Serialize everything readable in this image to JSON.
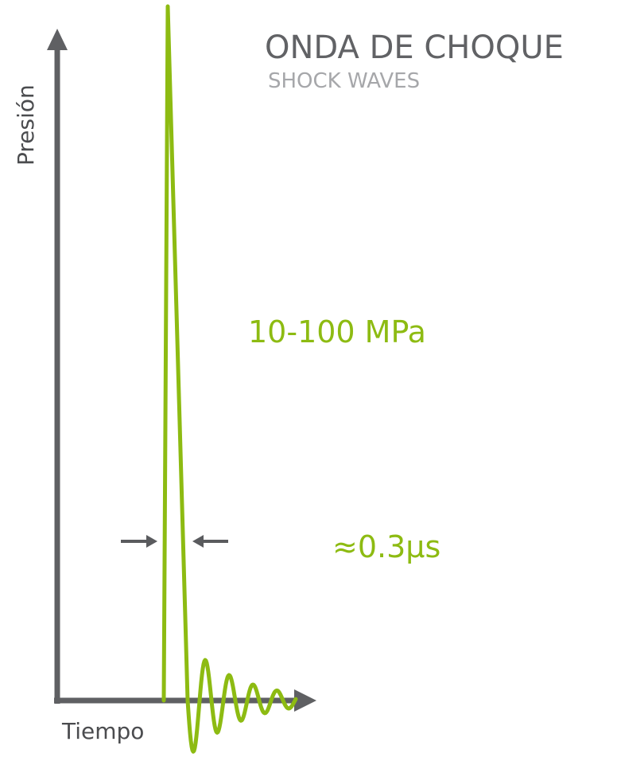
{
  "title": {
    "main": "ONDA DE CHOQUE",
    "sub": "SHOCK WAVES"
  },
  "axes": {
    "y_label": "Presión",
    "x_label": "Tiempo"
  },
  "annotations": {
    "pressure": "10-100 MPa",
    "duration": "≈0.3µs"
  },
  "colors": {
    "accent": "#8dbb12",
    "axis": "#5f6063",
    "title": "#616265",
    "subtitle": "#a6a7aa",
    "arrow_marker": "#5a5b5e"
  },
  "icons": {
    "axis_arrowheads": "triangle-arrow-icon",
    "width_markers": "arrow-right-icon / arrow-left-icon"
  }
}
